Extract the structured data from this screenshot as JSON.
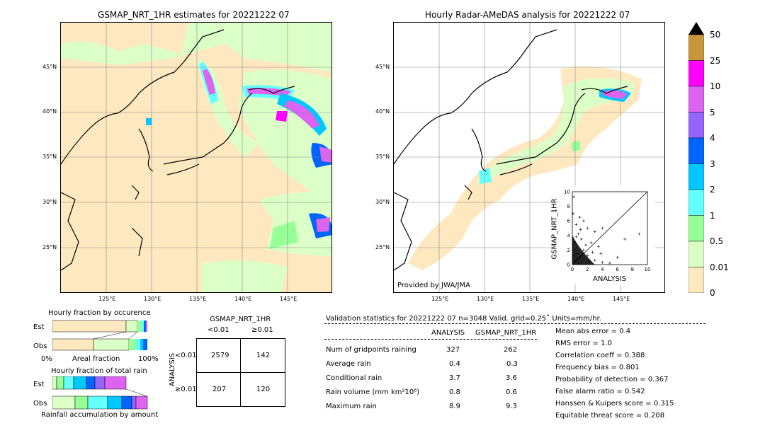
{
  "left_map": {
    "title": "GSMAP_NRT_1HR estimates for 20221222 07",
    "lat_labels": [
      "45°N",
      "40°N",
      "35°N",
      "30°N",
      "25°N"
    ],
    "lon_labels": [
      "125°E",
      "130°E",
      "135°E",
      "140°E",
      "145°E"
    ]
  },
  "right_map": {
    "title": "Hourly Radar-AMeDAS analysis for 20221222 07",
    "lat_labels": [
      "45°N",
      "40°N",
      "35°N",
      "30°N",
      "25°N"
    ],
    "lon_labels": [
      "125°E",
      "130°E",
      "135°E",
      "140°E",
      "145°E"
    ],
    "credit": "Provided by JWA/JMA"
  },
  "colorbar": {
    "labels": [
      "50",
      "25",
      "10",
      "5",
      "4",
      "3",
      "2",
      "1",
      "0.5",
      "0.01",
      "0"
    ],
    "colors": [
      "#c8963c",
      "#ff00ff",
      "#dc64f0",
      "#9664ff",
      "#0064ff",
      "#00c8ff",
      "#64ffff",
      "#96ff96",
      "#dcffc8",
      "#fde8bf"
    ],
    "extend_color": "#000000"
  },
  "scatter": {
    "xlabel": "ANALYSIS",
    "ylabel": "GSMAP_NRT_1HR",
    "ticks": [
      "0",
      "2",
      "4",
      "6",
      "8",
      "10"
    ],
    "ylim": [
      0,
      10
    ],
    "xlim": [
      0,
      10
    ]
  },
  "occurrence": {
    "title": "Hourly fraction by occurence",
    "rows": [
      "Est",
      "Obs"
    ],
    "axis_left": "0%",
    "axis_mid": "Areal fraction",
    "axis_right": "100%"
  },
  "total_rain": {
    "title": "Hourly fraction of total rain",
    "rows": [
      "Est",
      "Obs"
    ],
    "footer": "Rainfall accumulation by amount"
  },
  "contingency": {
    "title": "GSMAP_NRT_1HR",
    "col_lt": "<0.01",
    "col_ge": "≥0.01",
    "row_axis": "ANALYSIS",
    "row_lt": "<0.01",
    "row_ge": "≥0.01",
    "c11": "2579",
    "c12": "142",
    "c21": "207",
    "c22": "120"
  },
  "validation": {
    "header": "Validation statistics for 20221222 07  n=3048 Valid. grid=0.25˚ Units=mm/hr.",
    "col1": "ANALYSIS",
    "col2": "GSMAP_NRT_1HR",
    "rows": [
      {
        "label": "Num of gridpoints raining",
        "a": "327",
        "g": "262"
      },
      {
        "label": "Average rain",
        "a": "0.4",
        "g": "0.3"
      },
      {
        "label": "Conditional rain",
        "a": "3.7",
        "g": "3.6"
      },
      {
        "label": "Rain volume (mm km²10⁶)",
        "a": "0.8",
        "g": "0.6"
      },
      {
        "label": "Maximum rain",
        "a": "8.9",
        "g": "9.3"
      }
    ],
    "scores": [
      "Mean abs error =    0.4",
      "RMS error =    1.0",
      "Correlation coeff =  0.388",
      "Frequency bias =  0.801",
      "Probability of detection =  0.367",
      "False alarm ratio =  0.542",
      "Hanssen & Kuipers score =  0.315",
      "Equitable threat score =  0.208"
    ]
  },
  "chart_data": {
    "type": "scatter",
    "xlabel": "ANALYSIS",
    "ylabel": "GSMAP_NRT_1HR",
    "xlim": [
      0,
      10
    ],
    "ylim": [
      0,
      10
    ],
    "points": [
      [
        0.2,
        9.3
      ],
      [
        0.5,
        5.5
      ],
      [
        1,
        6.5
      ],
      [
        1.5,
        6
      ],
      [
        0.8,
        4.2
      ],
      [
        2,
        5
      ],
      [
        1.2,
        3.5
      ],
      [
        3,
        4.5
      ],
      [
        4,
        5
      ],
      [
        2.5,
        3
      ],
      [
        3.5,
        2.5
      ],
      [
        0.3,
        2
      ],
      [
        0.6,
        1.5
      ],
      [
        1,
        1
      ],
      [
        1.5,
        2
      ],
      [
        2,
        1.2
      ],
      [
        0.4,
        0.5
      ],
      [
        0.8,
        0.2
      ],
      [
        1.3,
        0.3
      ],
      [
        2.2,
        0.4
      ],
      [
        3,
        0.6
      ],
      [
        4,
        0.3
      ],
      [
        5,
        0.2
      ],
      [
        6,
        1
      ],
      [
        7,
        3.5
      ],
      [
        8.9,
        4.2
      ],
      [
        0.1,
        7
      ],
      [
        0.3,
        3
      ],
      [
        0.7,
        0.8
      ],
      [
        1.8,
        2.7
      ],
      [
        2.7,
        1.7
      ],
      [
        0.5,
        3.8
      ],
      [
        1.1,
        4.8
      ],
      [
        0.2,
        1.2
      ],
      [
        3.8,
        1.5
      ]
    ]
  }
}
